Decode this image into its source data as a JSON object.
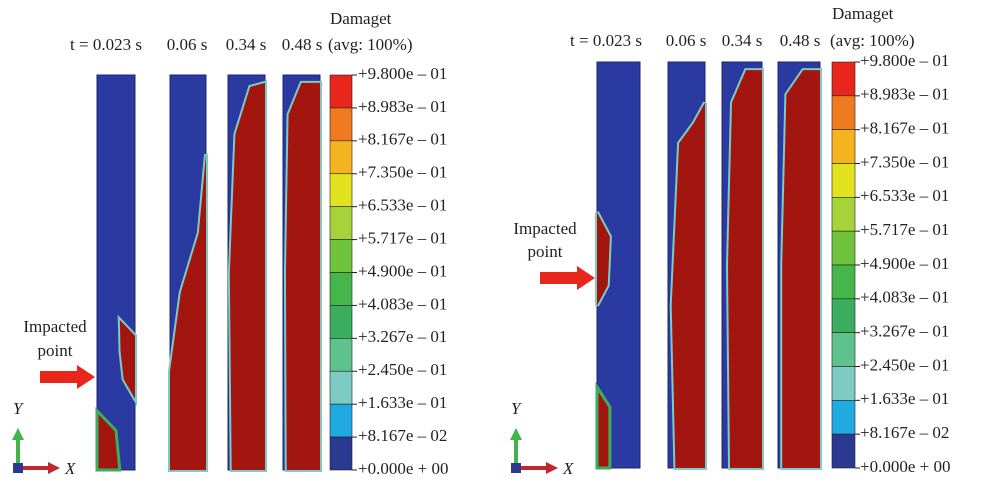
{
  "panels": [
    {
      "times": [
        "t = 0.023 s",
        "0.06 s",
        "0.34 s",
        "0.48 s"
      ],
      "legend_title": "Damaget",
      "legend_subtitle": "(avg: 100%)",
      "legend_labels": [
        "+9.800e – 01",
        "+8.983e – 01",
        "+8.167e – 01",
        "+7.350e – 01",
        "+6.533e – 01",
        "+5.717e – 01",
        "+4.900e – 01",
        "+4.083e – 01",
        "+3.267e – 01",
        "+2.450e – 01",
        "+1.633e – 01",
        "+8.167e – 02",
        "+0.000e + 00"
      ],
      "annotation": [
        "Impacted",
        "point"
      ],
      "y_axis": "Y",
      "x_axis": "X"
    },
    {
      "times": [
        "t = 0.023 s",
        "0.06 s",
        "0.34 s",
        "0.48 s"
      ],
      "legend_title": "Damaget",
      "legend_subtitle": "(avg: 100%)",
      "legend_labels": [
        "+9.800e – 01",
        "+8.983e – 01",
        "+8.167e – 01",
        "+7.350e – 01",
        "+6.533e – 01",
        "+5.717e – 01",
        "+4.900e – 01",
        "+4.083e – 01",
        "+3.267e – 01",
        "+2.450e – 01",
        "+1.633e – 01",
        "+8.167e – 02",
        "+0.000e + 00"
      ],
      "annotation": [
        "Impacted",
        "point"
      ],
      "y_axis": "Y",
      "x_axis": "X"
    }
  ],
  "legend_colors": [
    "#e8261b",
    "#f07a1f",
    "#f5b320",
    "#e3e21e",
    "#a6d23a",
    "#6fc43c",
    "#45b649",
    "#3aae5e",
    "#5ec38a",
    "#7ecbc4",
    "#21a9e1",
    "#2c66b7",
    "#2b3990"
  ]
}
